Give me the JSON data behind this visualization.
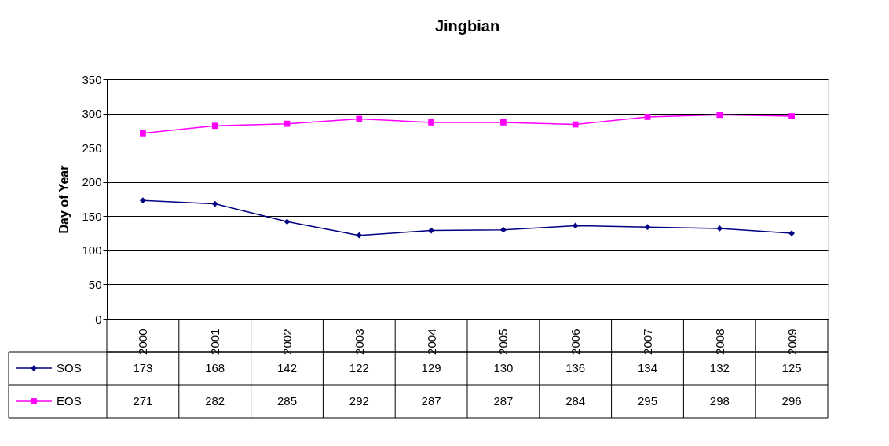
{
  "chart_data": {
    "type": "line",
    "title": "Jingbian",
    "ylabel": "Day of Year",
    "categories": [
      "2000",
      "2001",
      "2002",
      "2003",
      "2004",
      "2005",
      "2006",
      "2007",
      "2008",
      "2009"
    ],
    "series": [
      {
        "name": "SOS",
        "color": "#000080",
        "marker": "diamond",
        "values": [
          173,
          168,
          142,
          122,
          129,
          130,
          136,
          134,
          132,
          125
        ]
      },
      {
        "name": "EOS",
        "color": "#ff00ff",
        "marker": "square",
        "values": [
          271,
          282,
          285,
          292,
          287,
          287,
          284,
          295,
          298,
          296
        ]
      }
    ],
    "ylim": [
      0,
      350
    ],
    "yticks": [
      0,
      50,
      100,
      150,
      200,
      250,
      300,
      350
    ],
    "grid": "y",
    "legend": "bottom",
    "data_labels": true,
    "line_style": "solid"
  }
}
